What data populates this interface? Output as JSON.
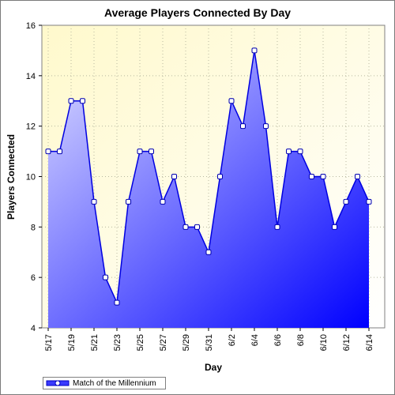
{
  "chart_data": {
    "type": "area",
    "title": "Average Players Connected By Day",
    "xlabel": "Day",
    "ylabel": "Players Connected",
    "ylim": [
      4,
      16
    ],
    "y_ticks": [
      4,
      6,
      8,
      10,
      12,
      14,
      16
    ],
    "x_tick_labels": [
      "5/17",
      "5/19",
      "5/21",
      "5/23",
      "5/25",
      "5/27",
      "5/29",
      "5/31",
      "6/2",
      "6/4",
      "6/6",
      "6/8",
      "6/10",
      "6/12",
      "6/14"
    ],
    "x": [
      "5/17",
      "5/18",
      "5/19",
      "5/20",
      "5/21",
      "5/22",
      "5/23",
      "5/24",
      "5/25",
      "5/26",
      "5/27",
      "5/28",
      "5/29",
      "5/30",
      "5/31",
      "6/1",
      "6/2",
      "6/3",
      "6/4",
      "6/5",
      "6/6",
      "6/7",
      "6/8",
      "6/9",
      "6/10",
      "6/11",
      "6/12",
      "6/13",
      "6/14"
    ],
    "series": [
      {
        "name": "Match of the Millennium",
        "values": [
          11,
          11,
          13,
          13,
          9,
          6,
          5,
          9,
          11,
          11,
          9,
          10,
          8,
          8,
          7,
          10,
          13,
          12,
          15,
          12,
          8,
          11,
          11,
          10,
          10,
          8,
          9,
          10,
          9
        ]
      }
    ],
    "grid": true,
    "legend_position": "bottom-left",
    "colors": {
      "plot_bg_top": "#fffbd8",
      "line": "#0000e0",
      "area_light": "#d4d4ff",
      "area_dark": "#0000ff",
      "marker_fill": "#ffffff"
    }
  }
}
